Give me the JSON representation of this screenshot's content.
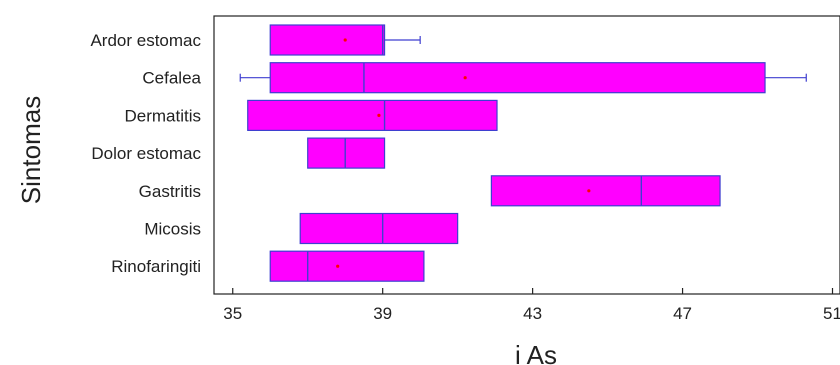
{
  "chart_data": {
    "type": "boxplot",
    "orientation": "horizontal",
    "xlabel": "i As",
    "ylabel": "Sintomas",
    "xlim": [
      34.5,
      51.2
    ],
    "xticks": [
      35,
      39,
      43,
      47,
      51
    ],
    "grid": false,
    "colors": {
      "box_fill": "#ff00ff",
      "box_edge": "#3f3fd0",
      "whisker": "#3f3fd0",
      "mean_marker": "#ff0000"
    },
    "categories": [
      "Ardor estomac",
      "Cefalea",
      "Dermatitis",
      "Dolor estomac",
      "Gastritis",
      "Micosis",
      "Rinofaringiti"
    ],
    "boxes": [
      {
        "category": "Ardor estomac",
        "whisker_low": 36.0,
        "q1": 36.0,
        "median": 39.0,
        "q3": 39.05,
        "whisker_high": 40.0,
        "mean": 38.0
      },
      {
        "category": "Cefalea",
        "whisker_low": 35.2,
        "q1": 36.0,
        "median": 38.5,
        "q3": 49.2,
        "whisker_high": 50.3,
        "mean": 41.2
      },
      {
        "category": "Dermatitis",
        "whisker_low": 35.4,
        "q1": 35.4,
        "median": 39.05,
        "q3": 42.05,
        "whisker_high": 42.05,
        "mean": 38.9
      },
      {
        "category": "Dolor estomac",
        "whisker_low": 37.0,
        "q1": 37.0,
        "median": 38.0,
        "q3": 39.05,
        "whisker_high": 39.05,
        "mean": null
      },
      {
        "category": "Gastritis",
        "whisker_low": 41.9,
        "q1": 41.9,
        "median": 45.9,
        "q3": 48.0,
        "whisker_high": 48.0,
        "mean": 44.5
      },
      {
        "category": "Micosis",
        "whisker_low": 36.8,
        "q1": 36.8,
        "median": 39.0,
        "q3": 41.0,
        "whisker_high": 41.0,
        "mean": null
      },
      {
        "category": "Rinofaringiti",
        "whisker_low": 36.0,
        "q1": 36.0,
        "median": 37.0,
        "q3": 40.1,
        "whisker_high": 40.1,
        "mean": 37.8
      }
    ]
  }
}
